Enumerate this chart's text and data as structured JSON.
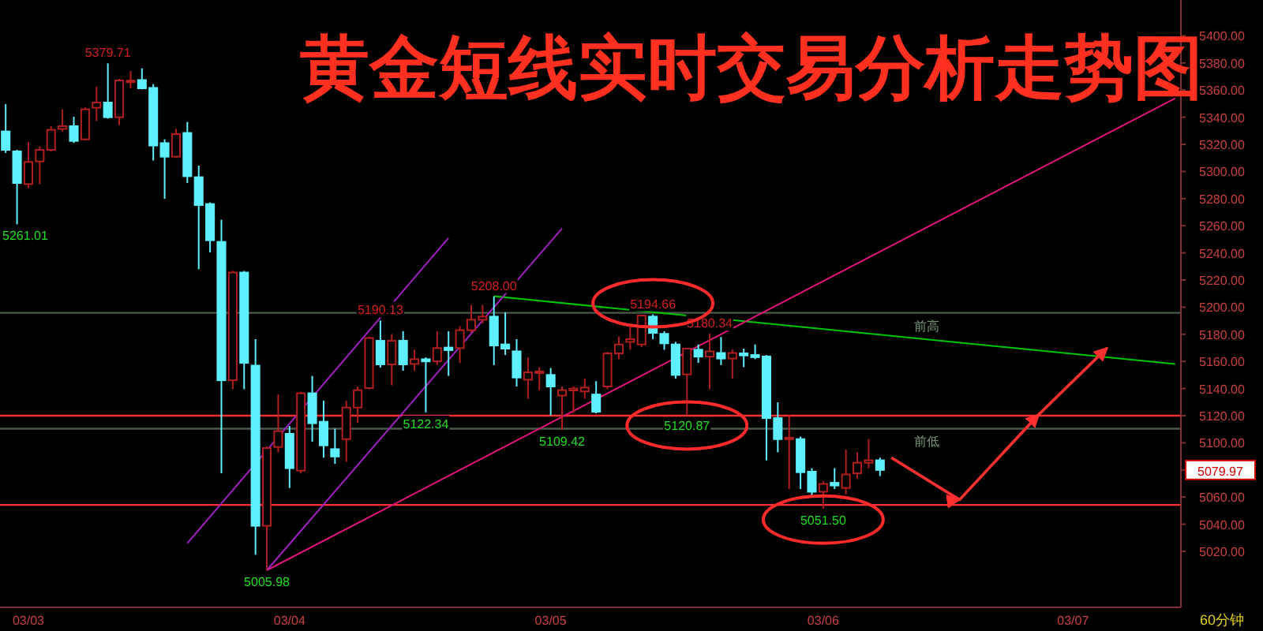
{
  "chart_data": {
    "type": "candlestick",
    "title": "黄金短线实时交易分析走势图",
    "categories": [
      null,
      null,
      "03/03",
      null,
      null,
      null,
      null,
      null,
      null,
      null,
      null,
      null,
      null,
      null,
      null,
      null,
      null,
      null,
      null,
      null,
      null,
      null,
      null,
      null,
      null,
      "03/04",
      null,
      null,
      null,
      null,
      null,
      null,
      null,
      null,
      null,
      null,
      null,
      null,
      null,
      null,
      null,
      null,
      null,
      null,
      null,
      null,
      null,
      null,
      "03/05",
      null,
      null,
      null,
      null,
      null,
      null,
      null,
      null,
      null,
      null,
      null,
      null,
      null,
      null,
      null,
      null,
      null,
      null,
      null,
      null,
      null,
      null,
      null,
      "03/06",
      null,
      null,
      null,
      null,
      null,
      null,
      null,
      null,
      null,
      null,
      null,
      null,
      null,
      null,
      null,
      null,
      null,
      null,
      null,
      null,
      null,
      "03/07",
      null,
      null,
      null,
      null,
      null,
      null,
      null,
      null,
      null
    ],
    "ohlc": [
      [
        5329.5,
        5349.6,
        5313.6,
        5315.9
      ],
      [
        5314.8,
        5316,
        5261.01,
        5291.5
      ],
      [
        5290.7,
        5321.7,
        5287.7,
        5307
      ],
      [
        5307.4,
        5318.6,
        5290.7,
        5315.9
      ],
      [
        5315.9,
        5333.4,
        5314.8,
        5330.7
      ],
      [
        5331.4,
        5345.8,
        5329.5,
        5333.4
      ],
      [
        5333.4,
        5340.3,
        5321,
        5322.5
      ],
      [
        5323.7,
        5347.3,
        5322.9,
        5345.8
      ],
      [
        5347,
        5362.4,
        5337.2,
        5350.8
      ],
      [
        5350.8,
        5379.71,
        5339,
        5340
      ],
      [
        5340,
        5368.3,
        5334.2,
        5367.1
      ],
      [
        5366,
        5374.1,
        5361.3,
        5367
      ],
      [
        5367.4,
        5376,
        5360.5,
        5361.3
      ],
      [
        5361.6,
        5364.4,
        5308.1,
        5319.1
      ],
      [
        5320.9,
        5323.7,
        5279.9,
        5310.9
      ],
      [
        5310.9,
        5331.4,
        5310.1,
        5327.5
      ],
      [
        5328.4,
        5336.5,
        5291.5,
        5296.5
      ],
      [
        5295.8,
        5304.3,
        5227.9,
        5275.2
      ],
      [
        5276,
        5277.2,
        5240.3,
        5249.3
      ],
      [
        5248.1,
        5264.4,
        5077.5,
        5146.1
      ],
      [
        5146.1,
        5226.7,
        5139.5,
        5225.5
      ],
      [
        5225.5,
        5226.7,
        5139.5,
        5158.9
      ],
      [
        5156.9,
        5176.4,
        5017.4,
        5038.8
      ],
      [
        5038.8,
        5097.3,
        5005.98,
        5096.1
      ],
      [
        5096.9,
        5135.6,
        5093,
        5108.6
      ],
      [
        5106.6,
        5112.4,
        5066.7,
        5081.3
      ],
      [
        5079.5,
        5137.6,
        5077.5,
        5136.5
      ],
      [
        5136.5,
        5149.3,
        5100.8,
        5114.4
      ],
      [
        5115.5,
        5131,
        5089,
        5098.1
      ],
      [
        5095.3,
        5110.4,
        5084.5,
        5089.9
      ],
      [
        5102.7,
        5131,
        5086,
        5126
      ],
      [
        5126,
        5141.5,
        5114.7,
        5138.8
      ],
      [
        5140.3,
        5178.3,
        5139.5,
        5177.2
      ],
      [
        5175.2,
        5190.13,
        5155.4,
        5157.8
      ],
      [
        5157.8,
        5180.2,
        5142.3,
        5175.2
      ],
      [
        5175.2,
        5182.2,
        5153.1,
        5157.8
      ],
      [
        5158.1,
        5168.6,
        5153.1,
        5161.6
      ],
      [
        5161.6,
        5163,
        5122.34,
        5160
      ],
      [
        5160.1,
        5182.2,
        5157.3,
        5169.8
      ],
      [
        5170.2,
        5182.2,
        5149.3,
        5168.3
      ],
      [
        5169.8,
        5186,
        5158.9,
        5183
      ],
      [
        5183,
        5201.6,
        5181,
        5190.7
      ],
      [
        5190.7,
        5201.6,
        5188,
        5193
      ],
      [
        5193,
        5208,
        5157.3,
        5171.7
      ],
      [
        5172.5,
        5196.1,
        5164.7,
        5169.4
      ],
      [
        5167.4,
        5176.4,
        5141.5,
        5148.1
      ],
      [
        5146.5,
        5162.8,
        5132.5,
        5151.9
      ],
      [
        5151.9,
        5155.8,
        5138.8,
        5152.6
      ],
      [
        5150,
        5155.1,
        5120.2,
        5141.5
      ],
      [
        5134.8,
        5141.5,
        5109.42,
        5138.8
      ],
      [
        5138.6,
        5141.5,
        5122,
        5140
      ],
      [
        5137.9,
        5147.3,
        5132.5,
        5140.7
      ],
      [
        5135.6,
        5145.4,
        5121.7,
        5122.9
      ],
      [
        5141.5,
        5167,
        5139.5,
        5165.9
      ],
      [
        5165.9,
        5178.3,
        5161.6,
        5172.5
      ],
      [
        5174.4,
        5186,
        5168.6,
        5176.4
      ],
      [
        5172.5,
        5194.2,
        5170.5,
        5193.8
      ],
      [
        5193,
        5194.66,
        5176.4,
        5181
      ],
      [
        5180.3,
        5182.2,
        5168.6,
        5173.3
      ],
      [
        5172.5,
        5174.4,
        5147.3,
        5150
      ],
      [
        5150.4,
        5170,
        5120.87,
        5169.4
      ],
      [
        5168.6,
        5172.5,
        5158.9,
        5163.5
      ],
      [
        5163.5,
        5180.34,
        5139.5,
        5167.4
      ],
      [
        5166.2,
        5178,
        5157.3,
        5162.1
      ],
      [
        5162.1,
        5168.6,
        5147.3,
        5166.2
      ],
      [
        5165.9,
        5169.4,
        5155.8,
        5164.4
      ],
      [
        5164.7,
        5172.5,
        5161.6,
        5163.1
      ],
      [
        5163.6,
        5164.7,
        5087,
        5118.2
      ],
      [
        5118.2,
        5129.8,
        5093,
        5102.7
      ],
      [
        5103.4,
        5120.2,
        5065.9,
        5103.8
      ],
      [
        5102.7,
        5104.6,
        5065.9,
        5078.3
      ],
      [
        5078.7,
        5081.3,
        5061,
        5063.9
      ],
      [
        5063.9,
        5071.7,
        5051.5,
        5069.7
      ],
      [
        5070.5,
        5081.3,
        5065.9,
        5068.5
      ],
      [
        5066.7,
        5095,
        5062,
        5076.7
      ],
      [
        5077.5,
        5093,
        5073.6,
        5085.3
      ],
      [
        5085.3,
        5102.7,
        5081.3,
        5087.1
      ],
      [
        5087.1,
        5089.1,
        5075.5,
        5079.97
      ],
      null,
      null,
      null,
      null,
      null,
      null,
      null,
      null,
      null,
      null,
      null,
      null,
      null,
      null,
      null,
      null,
      null,
      null,
      null,
      null,
      null,
      null,
      null,
      null,
      null,
      null
    ],
    "colors": [
      "#5ff0ff",
      "#5ff0ff",
      "#b01e1e",
      "#b01e1e",
      "#b01e1e",
      "#b01e1e",
      "#5ff0ff",
      "#b01e1e",
      "#b01e1e",
      "#5ff0ff",
      "#b01e1e",
      "#b01e1e",
      "#5ff0ff",
      "#5ff0ff",
      "#5ff0ff",
      "#b01e1e",
      "#5ff0ff",
      "#5ff0ff",
      "#5ff0ff",
      "#5ff0ff",
      "#b01e1e",
      "#5ff0ff",
      "#5ff0ff",
      "#b01e1e",
      "#b01e1e",
      "#5ff0ff",
      "#b01e1e",
      "#5ff0ff",
      "#5ff0ff",
      "#5ff0ff",
      "#b01e1e",
      "#b01e1e",
      "#b01e1e",
      "#5ff0ff",
      "#b01e1e",
      "#5ff0ff",
      "#b01e1e",
      "#5ff0ff",
      "#b01e1e",
      "#5ff0ff",
      "#b01e1e",
      "#b01e1e",
      "#b01e1e",
      "#5ff0ff",
      "#5ff0ff",
      "#5ff0ff",
      "#b01e1e",
      "#b01e1e",
      "#5ff0ff",
      "#b01e1e",
      "#b01e1e",
      "#b01e1e",
      "#5ff0ff",
      "#b01e1e",
      "#b01e1e",
      "#b01e1e",
      "#b01e1e",
      "#5ff0ff",
      "#5ff0ff",
      "#5ff0ff",
      "#b01e1e",
      "#5ff0ff",
      "#b01e1e",
      "#5ff0ff",
      "#b01e1e",
      "#5ff0ff",
      "#5ff0ff",
      "#5ff0ff",
      "#5ff0ff",
      "#b01e1e",
      "#5ff0ff",
      "#5ff0ff",
      "#b01e1e",
      "#5ff0ff",
      "#b01e1e",
      "#b01e1e",
      "#b01e1e",
      "#5ff0ff",
      null,
      null,
      null,
      null,
      null,
      null,
      null,
      null,
      null,
      null,
      null,
      null,
      null,
      null,
      null,
      null,
      null,
      null,
      null,
      null,
      null,
      null,
      null,
      null,
      null,
      null
    ],
    "value_labels": [
      null,
      "5261.01",
      null,
      null,
      null,
      null,
      null,
      null,
      null,
      "5379.71",
      null,
      null,
      null,
      null,
      null,
      null,
      null,
      null,
      null,
      null,
      null,
      null,
      null,
      "5005.98",
      null,
      null,
      null,
      null,
      null,
      null,
      null,
      null,
      null,
      "5190.13",
      null,
      null,
      null,
      "5122.34",
      null,
      null,
      null,
      null,
      null,
      "5208.00",
      null,
      null,
      null,
      null,
      null,
      "5109.42",
      null,
      null,
      null,
      null,
      null,
      null,
      null,
      "5194.66",
      null,
      null,
      "5120.87",
      null,
      "5180.34",
      null,
      null,
      null,
      null,
      null,
      null,
      null,
      null,
      null,
      "5051.50",
      null,
      null,
      null,
      null,
      null,
      null,
      null,
      null,
      null,
      null,
      null,
      null,
      null,
      null,
      null,
      null,
      null,
      null,
      null,
      null,
      null,
      null,
      null,
      null,
      null,
      null,
      null,
      null,
      null,
      null,
      null
    ],
    "series": [
      {
        "type": "line",
        "color": "#00c800",
        "values": [
          null,
          null,
          null,
          null,
          null,
          null,
          null,
          null,
          null,
          null,
          null,
          null,
          null,
          null,
          null,
          null,
          null,
          null,
          null,
          null,
          null,
          null,
          null,
          null,
          null,
          null,
          null,
          null,
          null,
          null,
          null,
          null,
          null,
          null,
          null,
          null,
          null,
          null,
          null,
          null,
          null,
          null,
          null,
          5208,
          null,
          null,
          null,
          null,
          null,
          null,
          null,
          null,
          null,
          null,
          null,
          null,
          null,
          null,
          null,
          null,
          null,
          null,
          null,
          null,
          null,
          null,
          null,
          null,
          null,
          null,
          null,
          null,
          null,
          null,
          null,
          null,
          null,
          null,
          null,
          null,
          null,
          null,
          null,
          null,
          null,
          null,
          null,
          null,
          null,
          null,
          null,
          null,
          null,
          null,
          null,
          null,
          null,
          null,
          null,
          null,
          null,
          null,
          null,
          5158
        ]
      },
      {
        "type": "line",
        "color": "#e0147a",
        "values": [
          null,
          null,
          null,
          null,
          null,
          null,
          null,
          null,
          null,
          null,
          null,
          null,
          null,
          null,
          null,
          null,
          null,
          null,
          null,
          null,
          null,
          null,
          null,
          5006,
          null,
          null,
          null,
          null,
          null,
          null,
          null,
          null,
          null,
          null,
          null,
          null,
          null,
          null,
          null,
          null,
          null,
          null,
          null,
          null,
          null,
          null,
          null,
          null,
          null,
          null,
          null,
          null,
          null,
          null,
          null,
          null,
          null,
          null,
          null,
          null,
          null,
          null,
          null,
          null,
          null,
          null,
          null,
          null,
          null,
          null,
          null,
          null,
          null,
          null,
          null,
          null,
          null,
          null,
          null,
          null,
          null,
          null,
          null,
          null,
          null,
          null,
          null,
          null,
          null,
          null,
          null,
          null,
          null,
          null,
          null,
          null,
          null,
          null,
          null,
          null,
          null,
          null,
          null,
          5354
        ]
      },
      {
        "type": "line",
        "color": "#a020c0",
        "values": [
          null,
          null,
          null,
          null,
          null,
          null,
          null,
          null,
          null,
          null,
          null,
          null,
          null,
          null,
          null,
          null,
          5026,
          null,
          null,
          null,
          null,
          null,
          null,
          null,
          null,
          null,
          null,
          null,
          null,
          null,
          null,
          null,
          null,
          null,
          null,
          null,
          null,
          null,
          null,
          5251,
          null,
          null,
          null,
          null,
          null,
          null,
          null,
          null,
          null,
          null,
          null,
          null,
          null,
          null,
          null,
          null,
          null,
          null,
          null,
          null,
          null,
          null,
          null,
          null,
          null,
          null,
          null,
          null,
          null,
          null,
          null,
          null,
          null,
          null,
          null,
          null,
          null,
          null,
          null,
          null,
          null,
          null,
          null,
          null,
          null,
          null,
          null,
          null,
          null,
          null,
          null,
          null,
          null,
          null,
          null,
          null,
          null,
          null,
          null,
          null,
          null,
          null,
          null,
          null
        ]
      },
      {
        "type": "line",
        "color": "#a020c0",
        "values": [
          null,
          null,
          null,
          null,
          null,
          null,
          null,
          null,
          null,
          null,
          null,
          null,
          null,
          null,
          null,
          null,
          null,
          null,
          null,
          null,
          null,
          null,
          null,
          5006,
          null,
          null,
          null,
          null,
          null,
          null,
          null,
          null,
          null,
          null,
          null,
          null,
          null,
          null,
          null,
          null,
          null,
          null,
          null,
          null,
          null,
          null,
          null,
          null,
          null,
          5258,
          null,
          null,
          null,
          null,
          null,
          null,
          null,
          null,
          null,
          null,
          null,
          null,
          null,
          null,
          null,
          null,
          null,
          null,
          null,
          null,
          null,
          null,
          null,
          null,
          null,
          null,
          null,
          null,
          null,
          null,
          null,
          null,
          null,
          null,
          null,
          null,
          null,
          null,
          null,
          null,
          null,
          null,
          null,
          null,
          null,
          null,
          null,
          null,
          null,
          null,
          null,
          null,
          null,
          null
        ]
      },
      {
        "type": "line",
        "color": "#ff3030",
        "values": [
          null,
          null,
          null,
          null,
          null,
          null,
          null,
          null,
          null,
          null,
          null,
          null,
          null,
          null,
          null,
          null,
          null,
          null,
          null,
          null,
          null,
          null,
          null,
          null,
          null,
          null,
          null,
          null,
          null,
          null,
          null,
          null,
          null,
          null,
          null,
          null,
          null,
          null,
          null,
          null,
          null,
          null,
          null,
          null,
          null,
          null,
          null,
          null,
          null,
          null,
          null,
          null,
          null,
          null,
          null,
          null,
          null,
          null,
          null,
          null,
          null,
          null,
          null,
          null,
          null,
          null,
          null,
          null,
          null,
          null,
          null,
          null,
          null,
          null,
          null,
          null,
          null,
          null,
          5089,
          null,
          null,
          null,
          null,
          null,
          5058,
          null,
          null,
          null,
          null,
          null,
          null,
          5121,
          null,
          null,
          null,
          null,
          null,
          5170,
          null,
          null,
          null,
          null,
          null,
          null
        ]
      }
    ],
    "ref_lines": [
      {
        "axis": "y",
        "value": 5195.8,
        "label": "前高",
        "color": "#4a5a4a"
      },
      {
        "axis": "y",
        "value": 5110.4,
        "label": "前低",
        "color": "#4a5a4a"
      },
      {
        "axis": "y",
        "value": 5120,
        "color": "#ff3030"
      },
      {
        "axis": "y",
        "value": 5054.2,
        "color": "#ff3030"
      }
    ],
    "annotations": [
      "5079.97",
      "60分钟"
    ],
    "ylim": [
      4978.7,
      5426.4
    ],
    "yticks": [
      {
        "value": 5020,
        "label": "5020.00"
      },
      {
        "value": 5040,
        "label": "5040.00"
      },
      {
        "value": 5060,
        "label": "5060.00"
      },
      {
        "value": 5080,
        "label": null
      },
      {
        "value": 5100,
        "label": "5100.00"
      },
      {
        "value": 5120,
        "label": "5120.00"
      },
      {
        "value": 5140,
        "label": "5140.00"
      },
      {
        "value": 5160,
        "label": "5160.00"
      },
      {
        "value": 5180,
        "label": "5180.00"
      },
      {
        "value": 5200,
        "label": "5200.00"
      },
      {
        "value": 5220,
        "label": "5220.00"
      },
      {
        "value": 5240,
        "label": "5240.00"
      },
      {
        "value": 5260,
        "label": "5260.00"
      },
      {
        "value": 5280,
        "label": "5280.00"
      },
      {
        "value": 5300,
        "label": "5300.00"
      },
      {
        "value": 5320,
        "label": "5320.00"
      },
      {
        "value": 5340,
        "label": "5340.00"
      },
      {
        "value": 5360,
        "label": "5360.00"
      },
      {
        "value": 5380,
        "label": "5380.00"
      },
      {
        "value": 5400,
        "label": "5400.00"
      }
    ]
  }
}
